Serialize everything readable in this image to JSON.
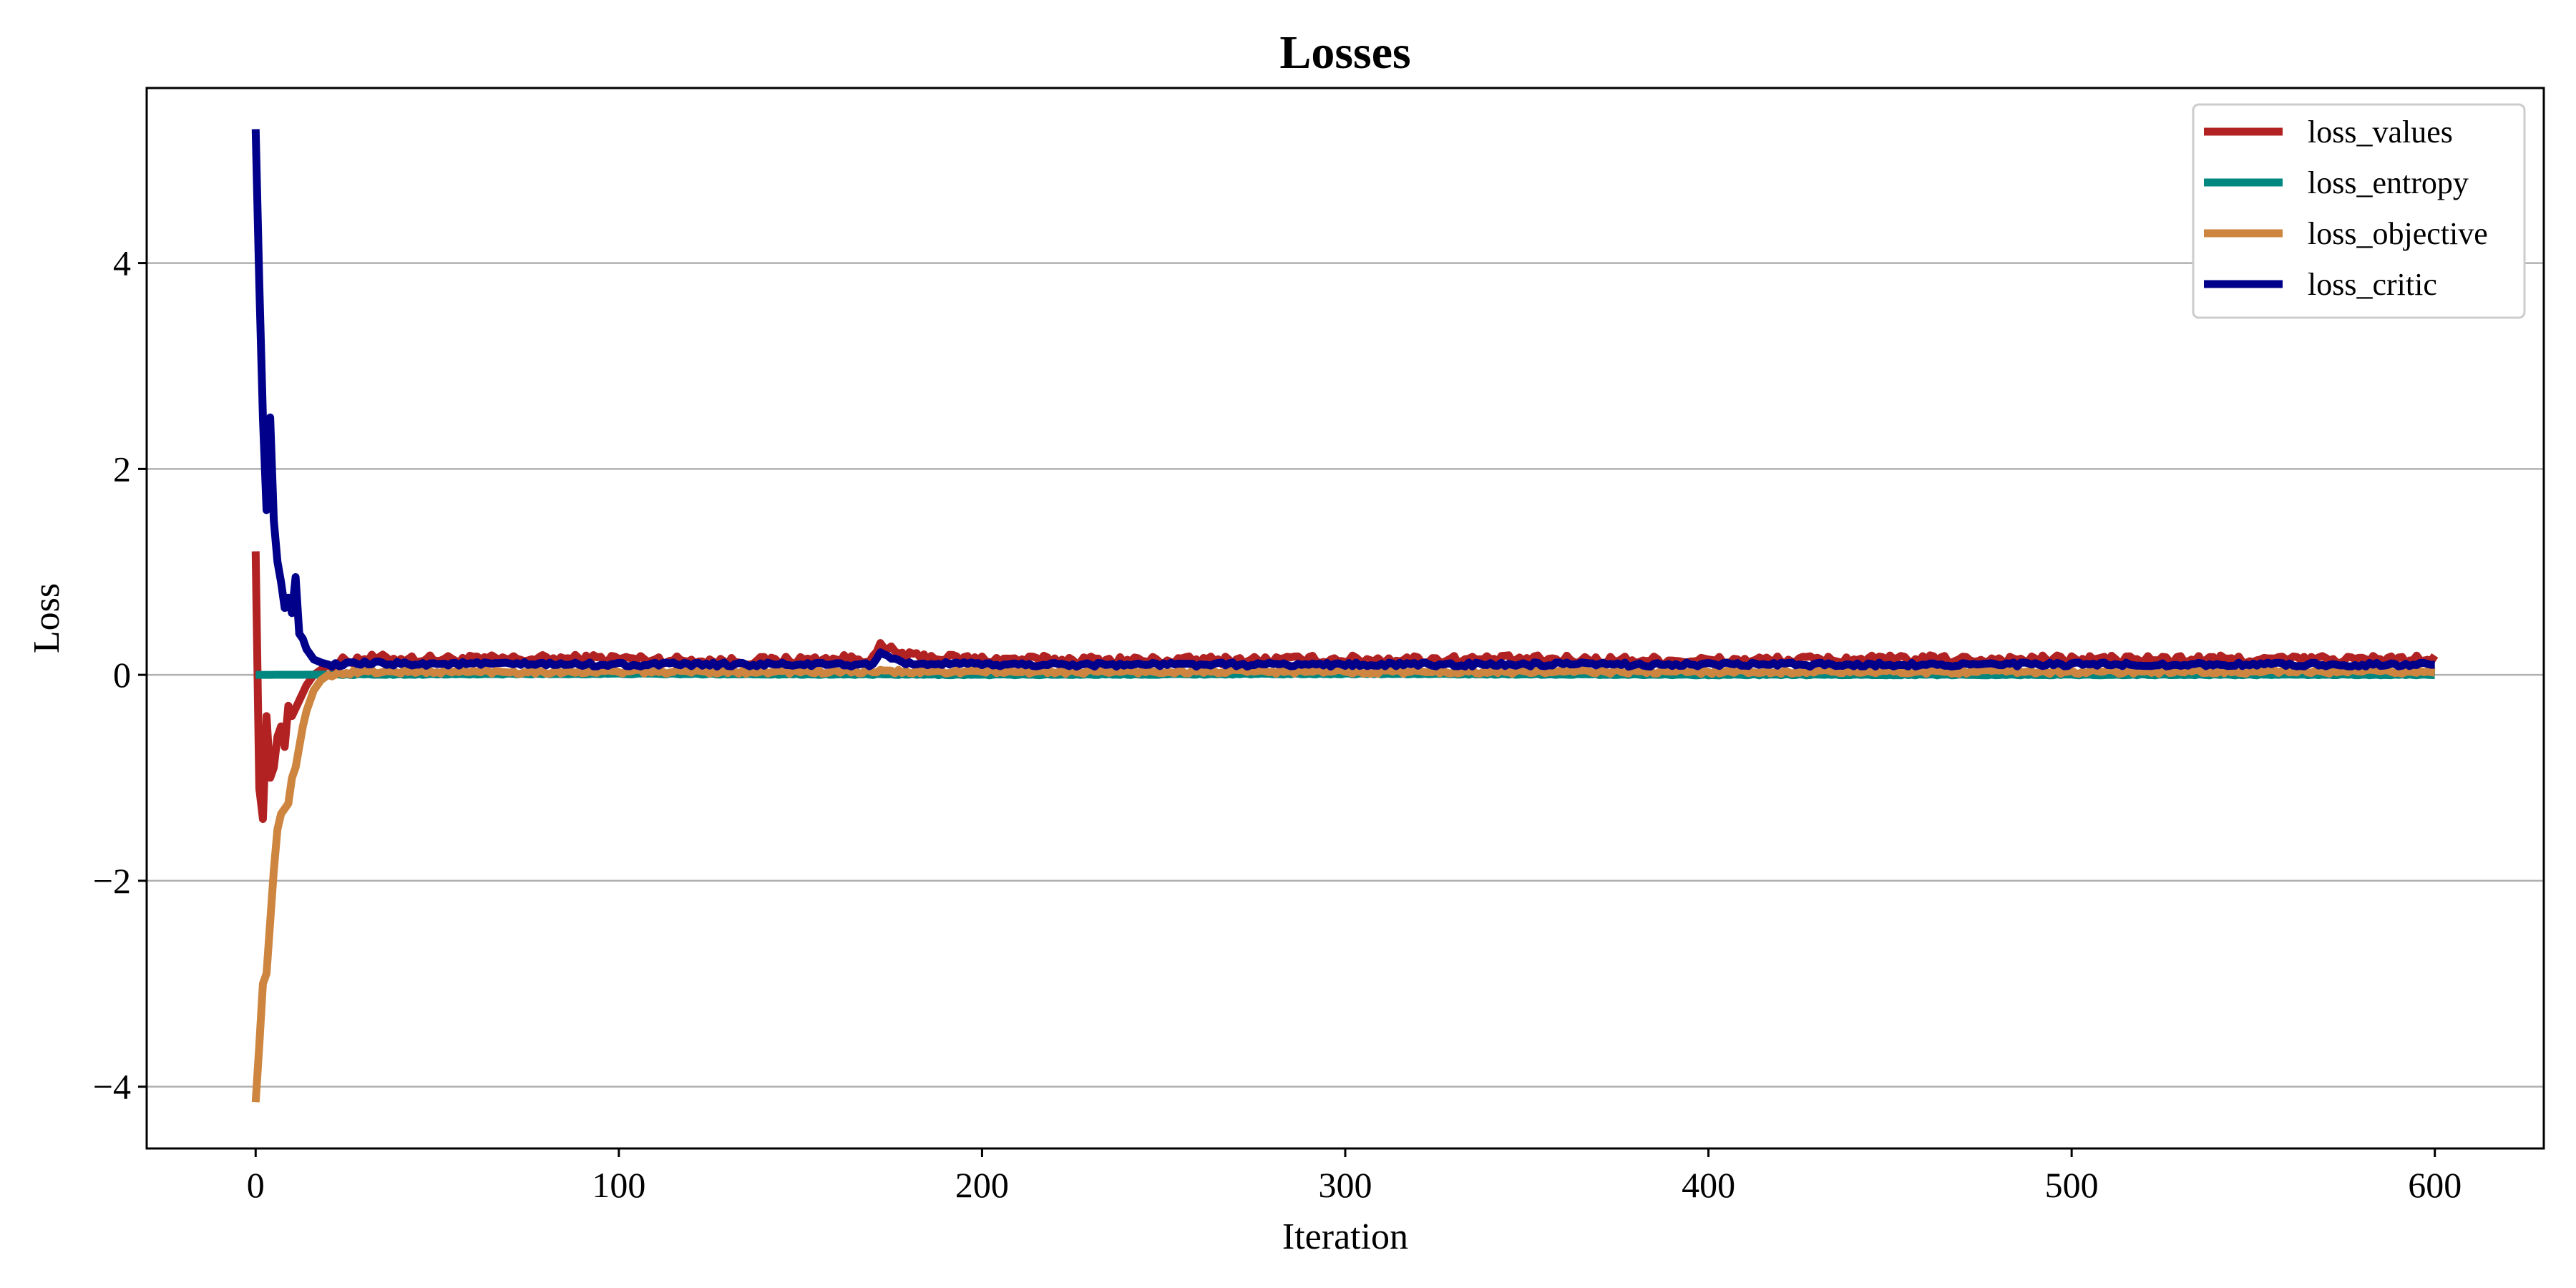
{
  "chart_data": {
    "type": "line",
    "title": "Losses",
    "xlabel": "Iteration",
    "ylabel": "Loss",
    "xlim": [
      -30,
      630
    ],
    "ylim": [
      -4.6,
      5.7
    ],
    "x_ticks": [
      0,
      100,
      200,
      300,
      400,
      500,
      600
    ],
    "x_tick_labels": [
      "0",
      "100",
      "200",
      "300",
      "400",
      "500",
      "600"
    ],
    "y_ticks": [
      -4,
      -2,
      0,
      2,
      4
    ],
    "y_tick_labels": [
      "−4",
      "−2",
      "0",
      "2",
      "4"
    ],
    "grid": "horizontal",
    "legend_position": "top-right",
    "series": [
      {
        "name": "loss_values",
        "color": "#b22222",
        "points": [
          [
            0,
            1.2
          ],
          [
            1,
            -1.1
          ],
          [
            2,
            -1.4
          ],
          [
            3,
            -0.4
          ],
          [
            4,
            -1.0
          ],
          [
            5,
            -0.9
          ],
          [
            6,
            -0.6
          ],
          [
            7,
            -0.5
          ],
          [
            8,
            -0.7
          ],
          [
            9,
            -0.3
          ],
          [
            10,
            -0.4
          ],
          [
            12,
            -0.25
          ],
          [
            14,
            -0.1
          ],
          [
            16,
            0.0
          ],
          [
            18,
            0.05
          ],
          [
            20,
            0.1
          ],
          [
            25,
            0.14
          ],
          [
            30,
            0.16
          ],
          [
            60,
            0.15
          ],
          [
            100,
            0.16
          ],
          [
            130,
            0.13
          ],
          [
            170,
            0.16
          ],
          [
            172,
            0.27
          ],
          [
            175,
            0.24
          ],
          [
            180,
            0.18
          ],
          [
            200,
            0.15
          ],
          [
            250,
            0.14
          ],
          [
            300,
            0.15
          ],
          [
            350,
            0.15
          ],
          [
            400,
            0.14
          ],
          [
            450,
            0.15
          ],
          [
            500,
            0.15
          ],
          [
            550,
            0.15
          ],
          [
            600,
            0.15
          ]
        ],
        "noise": 0.04
      },
      {
        "name": "loss_entropy",
        "color": "#00877f",
        "points": [
          [
            0,
            0.0
          ],
          [
            100,
            0.01
          ],
          [
            200,
            0.0
          ],
          [
            300,
            0.01
          ],
          [
            400,
            0.0
          ],
          [
            500,
            0.0
          ],
          [
            600,
            0.0
          ]
        ],
        "noise": 0.005
      },
      {
        "name": "loss_objective",
        "color": "#cd853f",
        "points": [
          [
            0,
            -4.15
          ],
          [
            1,
            -3.6
          ],
          [
            2,
            -3.0
          ],
          [
            3,
            -2.9
          ],
          [
            4,
            -2.4
          ],
          [
            5,
            -1.9
          ],
          [
            6,
            -1.5
          ],
          [
            7,
            -1.35
          ],
          [
            8,
            -1.3
          ],
          [
            9,
            -1.25
          ],
          [
            10,
            -1.0
          ],
          [
            11,
            -0.9
          ],
          [
            12,
            -0.7
          ],
          [
            13,
            -0.5
          ],
          [
            14,
            -0.35
          ],
          [
            15,
            -0.25
          ],
          [
            16,
            -0.15
          ],
          [
            18,
            -0.05
          ],
          [
            20,
            0.0
          ],
          [
            25,
            0.02
          ],
          [
            30,
            0.03
          ],
          [
            60,
            0.03
          ],
          [
            100,
            0.03
          ],
          [
            200,
            0.03
          ],
          [
            300,
            0.03
          ],
          [
            400,
            0.03
          ],
          [
            500,
            0.03
          ],
          [
            600,
            0.03
          ]
        ],
        "noise": 0.02
      },
      {
        "name": "loss_critic",
        "color": "#00008b",
        "points": [
          [
            0,
            5.3
          ],
          [
            1,
            3.8
          ],
          [
            2,
            2.5
          ],
          [
            3,
            1.6
          ],
          [
            4,
            2.5
          ],
          [
            5,
            1.5
          ],
          [
            6,
            1.1
          ],
          [
            7,
            0.9
          ],
          [
            8,
            0.65
          ],
          [
            9,
            0.75
          ],
          [
            10,
            0.6
          ],
          [
            11,
            0.95
          ],
          [
            12,
            0.4
          ],
          [
            13,
            0.35
          ],
          [
            14,
            0.25
          ],
          [
            16,
            0.15
          ],
          [
            18,
            0.12
          ],
          [
            20,
            0.1
          ],
          [
            25,
            0.1
          ],
          [
            30,
            0.11
          ],
          [
            100,
            0.1
          ],
          [
            170,
            0.1
          ],
          [
            172,
            0.2
          ],
          [
            175,
            0.15
          ],
          [
            180,
            0.11
          ],
          [
            200,
            0.1
          ],
          [
            300,
            0.1
          ],
          [
            400,
            0.1
          ],
          [
            500,
            0.1
          ],
          [
            600,
            0.1
          ]
        ],
        "noise": 0.02
      }
    ]
  }
}
